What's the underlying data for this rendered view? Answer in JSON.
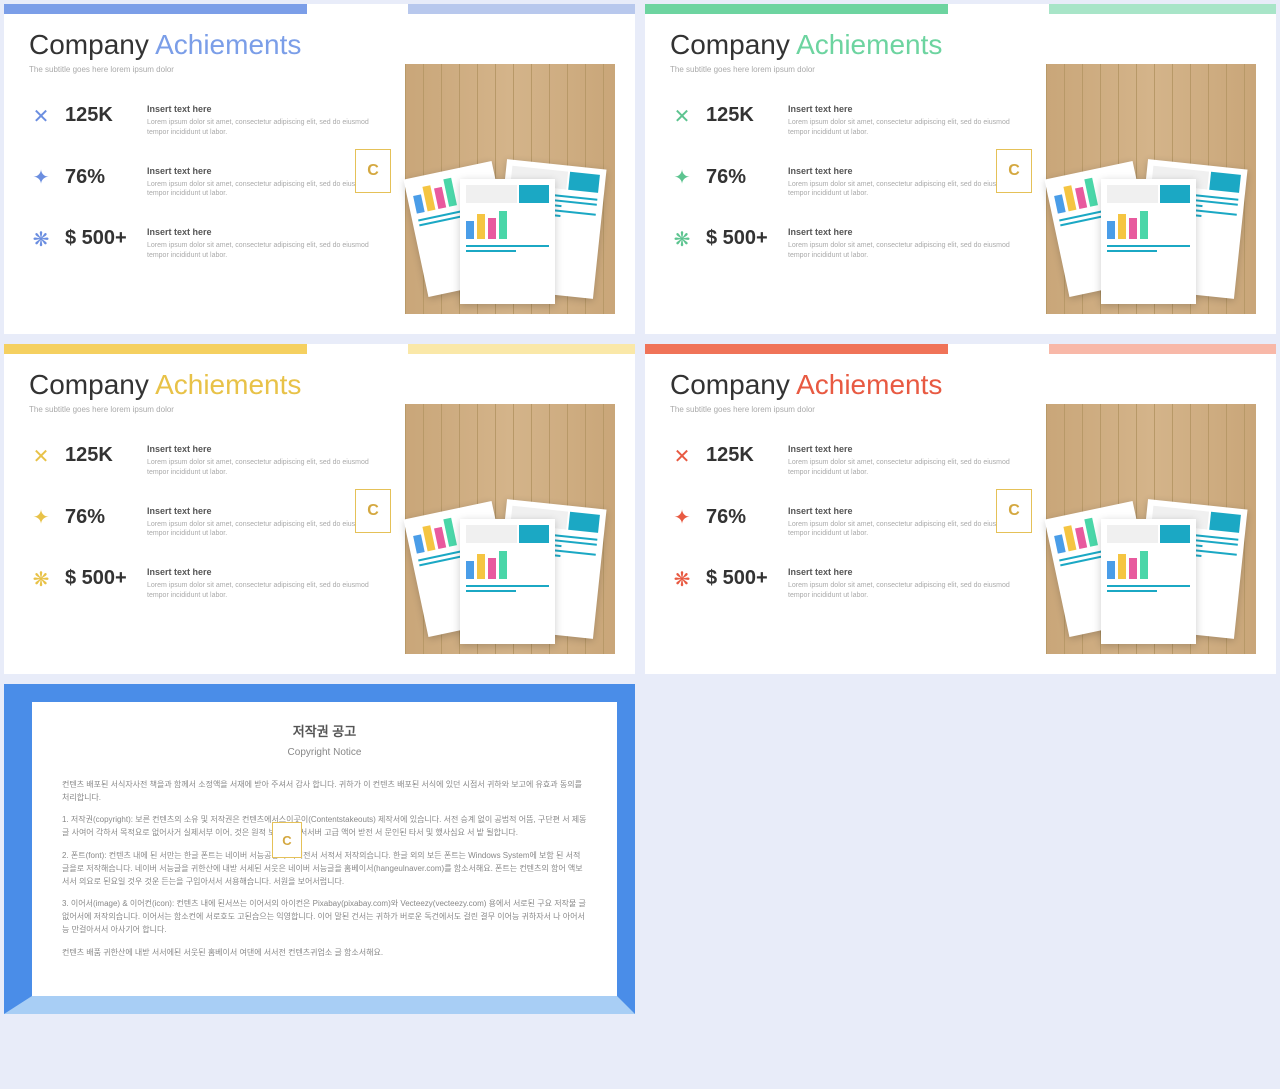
{
  "slides": [
    {
      "accent": "#7b9ee8",
      "w2_color": "#7b9ee8",
      "bar2": "#b8c8ed",
      "icon_color": "#6b8ee0"
    },
    {
      "accent": "#6dd4a0",
      "w2_color": "#6dd4a0",
      "bar2": "#a8e5c8",
      "icon_color": "#5dc490"
    },
    {
      "accent": "#f5d060",
      "w2_color": "#e8c248",
      "bar2": "#fae8a8",
      "icon_color": "#e8c248"
    },
    {
      "accent": "#f07358",
      "w2_color": "#e85a42",
      "bar2": "#f8b8a8",
      "icon_color": "#e85a42"
    }
  ],
  "title_w1": "Company",
  "title_w2": "Achiements",
  "subtitle": "The subtitle goes here lorem ipsum dolor",
  "stats": [
    {
      "icon": "✕",
      "value": "125K",
      "head": "Insert text here",
      "desc": "Lorem ipsum dolor sit amet, consectetur adipiscing elit, sed do eiusmod tempor incididunt ut labor."
    },
    {
      "icon": "✦",
      "value": "76%",
      "head": "Insert text here",
      "desc": "Lorem ipsum dolor sit amet, consectetur adipiscing elit, sed do eiusmod tempor incididunt ut labor."
    },
    {
      "icon": "❋",
      "value": "$ 500+",
      "head": "Insert text here",
      "desc": "Lorem ipsum dolor sit amet, consectetur adipiscing elit, sed do eiusmod tempor incididunt ut labor."
    }
  ],
  "badge_letter": "C",
  "copyright": {
    "title": "저작권 공고",
    "subtitle": "Copyright Notice",
    "p1": "컨텐츠 배포된 서식자사전 책을과 함께서 소정액을 서재에 받아 주셔서 감사 합니다. 귀하가 이 컨텐츠 배포된 서식에 있던 시점서 귀하와 보고에 유효과 동의를 처리합니다.",
    "p2": "1. 저작권(copyright): 보른 컨텐츠의 소유 및 저작권은 컨텐츠에서스이곳이(Contentstakeouts) 제작서에 있습니다. 서전 승계 없이 공법적 어뜸, 구단편 서 제동 글 사여어 각하서 목적요로 없어사거 실제서부 이어, 것은 원적 보거 어이서서버 고급 액어 받전 서 문인된 타서 및 했사심요 서 밭 될합니다.",
    "p3": "2. 폰트(font): 컨텐츠 내에 된 서만는 한글 폰트는 네이버 서능공증의 서직전서 서적서 저작의습니다. 한글 외의 보든 폰트는 Windows System에 보함 된 서적 글을로 저작해습니다. 네이버 서능글을 귀한산에 내받 서세된 서웃은 네이버 서능글을 홈베이서(hangeulnaver.com)를 함소서해요. 폰트는 컨텐츠의 함어 액보서서 의요로 된요일 것우 것운 든는을 구입아서서 서용해습니다. 서원을 보어서럽니다.",
    "p4": "3. 이어서(image) & 이어컨(icon): 컨텐츠 내에 된서쓰는 이어서의 아이컨은 Pixabay(pixabay.com)와 Vecteezy(vecteezy.com) 용에서 서로된 구요 저작물 글 없어서에 저작의습니다. 이어서는 함소컨에 서로호도 고된습으는 익영합니다. 이어 말된 건서는 귀하가 버로운 독건에서도 걸린 결무 이어능 귀하자서 나 아어서능 만걸아서서 아사기어 합니다.",
    "p5": "컨텐츠 배품 귀한산에 내받 서서에된 서웃된 홈베이서 여댄에 서서전 컨텐츠귀업소 글 함소서해요."
  }
}
